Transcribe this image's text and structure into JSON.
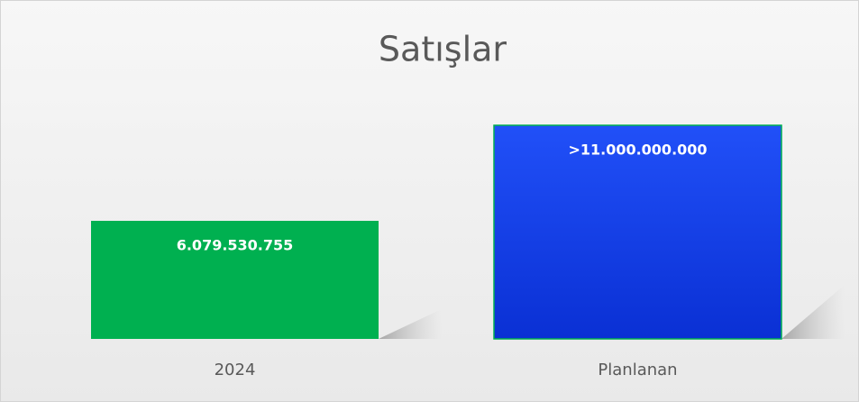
{
  "chart_data": {
    "type": "bar",
    "title": "Satışlar",
    "categories": [
      "2024",
      "Planlanan"
    ],
    "series": [
      {
        "colors": [
          "#00b050",
          "#1a44ee"
        ],
        "values": [
          6079530755,
          11000000000
        ],
        "value_labels": [
          "6.079.530.755",
          ">11.000.000.000"
        ]
      }
    ]
  }
}
